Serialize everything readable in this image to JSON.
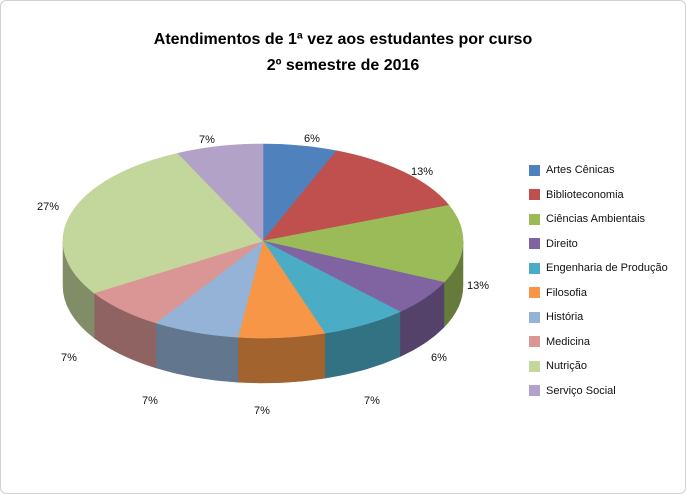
{
  "chart_data": {
    "type": "pie",
    "style": "3d",
    "title": "Atendimentos de 1ª vez aos estudantes por curso",
    "subtitle": "2º semestre de 2016",
    "legend_position": "right",
    "label_suffix": "%",
    "categories": [
      "Artes Cênicas",
      "Biblioteconomia",
      "Ciências Ambientais",
      "Direito",
      "Engenharia de Produção",
      "Filosofia",
      "História",
      "Medicina",
      "Nutrição",
      "Serviço Social"
    ],
    "values": [
      6,
      13,
      13,
      6,
      7,
      7,
      7,
      7,
      27,
      7
    ],
    "colors": [
      "#4F81BD",
      "#C0504D",
      "#9BBB59",
      "#8064A2",
      "#4BACC6",
      "#F79646",
      "#95B3D7",
      "#D99694",
      "#C3D69B",
      "#B3A2C7"
    ]
  }
}
